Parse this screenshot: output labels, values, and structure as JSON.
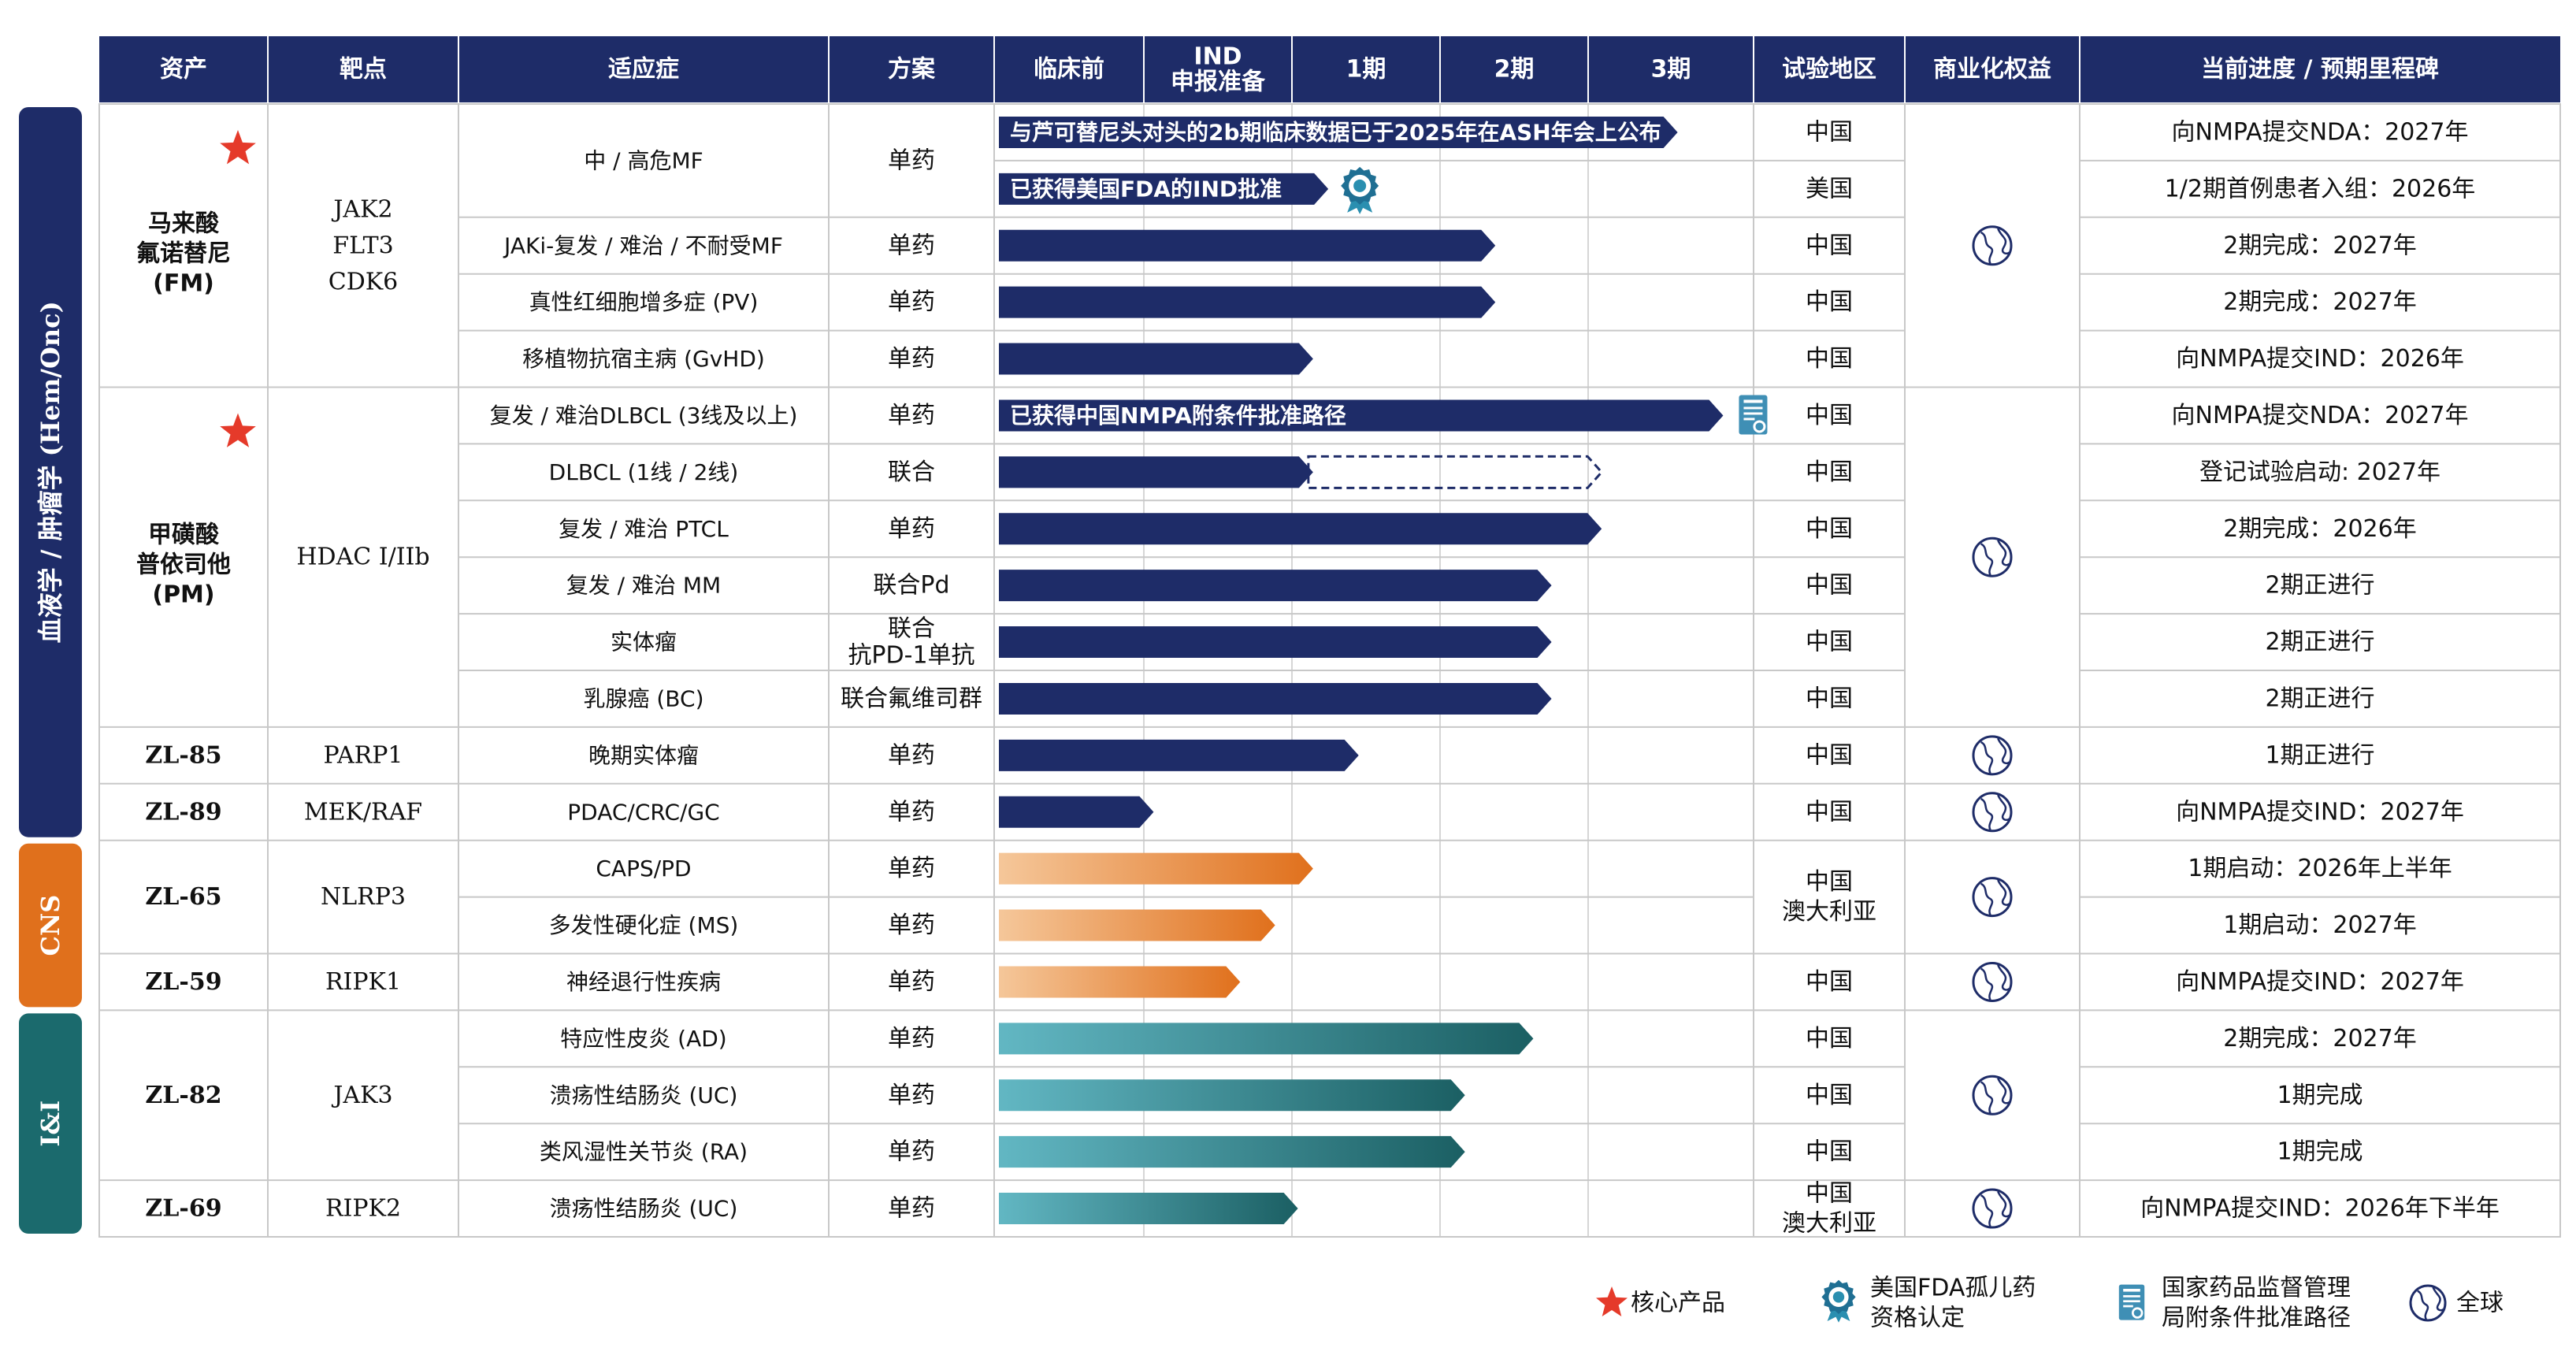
{
  "header": [
    "资产",
    "靶点",
    "适应症",
    "方案",
    "临床前",
    "IND\n申报准备",
    "1期",
    "2期",
    "3期",
    "试验地区",
    "商业化权益",
    "当前进度 / 预期里程碑"
  ],
  "categories": [
    {
      "label": "血液学 / 肿瘤学 (Hem/Onc)",
      "color": "#1e2c68"
    },
    {
      "label": "CNS",
      "color": "#e0701c"
    },
    {
      "label": "I&I",
      "color": "#1b6a6d"
    }
  ],
  "groups": [
    {
      "name": "马来酸\n氟诺替尼\n(FM)",
      "target": "JAK2\nFLT3\nCDK6",
      "star": true
    },
    {
      "name": "甲磺酸\n普依司他\n(PM)",
      "target": "HDAC I/IIb",
      "star": true
    },
    {
      "name": "ZL-85",
      "target": "PARP1",
      "star": false
    },
    {
      "name": "ZL-89",
      "target": "MEK/RAF",
      "star": false
    },
    {
      "name": "ZL-65",
      "target": "NLRP3",
      "star": false
    },
    {
      "name": "ZL-59",
      "target": "RIPK1",
      "star": false
    },
    {
      "name": "ZL-82",
      "target": "JAK3",
      "star": false
    },
    {
      "name": "ZL-69",
      "target": "RIPK2",
      "star": false
    }
  ],
  "rights_icon": "globe-icon",
  "chart_data": {
    "type": "table",
    "phases": [
      "临床前",
      "IND 申报准备",
      "1期",
      "2期",
      "3期"
    ],
    "progress_unit": "phase position on a 0–5 scale (0 = start of 临床前, 5 = end of 3期)",
    "rows": [
      {
        "asset": "马来酸氟诺替尼 (FM)",
        "indication": "中 / 高危MF",
        "regimen": "单药",
        "region": "中国",
        "milestone": "向NMPA提交NDA：2027年",
        "bar_style": "navy",
        "progress": 4.5,
        "bar_text": "与芦可替尼头对头的2b期临床数据已于2025年在ASH年会上公布"
      },
      {
        "asset": "马来酸氟诺替尼 (FM)",
        "indication": "中 / 高危MF",
        "regimen": "单药",
        "region": "美国",
        "milestone": "1/2期首例患者入组：2026年",
        "bar_style": "navy",
        "progress": 2.2,
        "bar_text": "已获得美国FDA的IND批准",
        "badge": "fda-orphan-drug-icon"
      },
      {
        "asset": "马来酸氟诺替尼 (FM)",
        "indication": "JAKi-复发 / 难治 / 不耐受MF",
        "regimen": "单药",
        "region": "中国",
        "milestone": "2期完成：2027年",
        "bar_style": "navy",
        "progress": 3.3
      },
      {
        "asset": "马来酸氟诺替尼 (FM)",
        "indication": "真性红细胞增多症 (PV)",
        "regimen": "单药",
        "region": "中国",
        "milestone": "2期完成：2027年",
        "bar_style": "navy",
        "progress": 3.3
      },
      {
        "asset": "马来酸氟诺替尼 (FM)",
        "indication": "移植物抗宿主病 (GvHD)",
        "regimen": "单药",
        "region": "中国",
        "milestone": "向NMPA提交IND：2026年",
        "bar_style": "navy",
        "progress": 2.1
      },
      {
        "asset": "甲磺酸普依司他 (PM)",
        "indication": "复发 / 难治DLBCL (3线及以上)",
        "regimen": "单药",
        "region": "中国",
        "milestone": "向NMPA提交NDA：2027年",
        "bar_style": "navy",
        "progress": 4.8,
        "bar_text": "已获得中国NMPA附条件批准路径",
        "badge": "nmpa-conditional-approval-icon"
      },
      {
        "asset": "甲磺酸普依司他 (PM)",
        "indication": "DLBCL (1线 / 2线)",
        "regimen": "联合",
        "region": "中国",
        "milestone": "登记试验启动: 2027年",
        "bar_style": "navy",
        "progress": 2.1,
        "planned_to": 4.0
      },
      {
        "asset": "甲磺酸普依司他 (PM)",
        "indication": "复发 / 难治 PTCL",
        "regimen": "单药",
        "region": "中国",
        "milestone": "2期完成：2026年",
        "bar_style": "navy",
        "progress": 4.0
      },
      {
        "asset": "甲磺酸普依司他 (PM)",
        "indication": "复发 / 难治 MM",
        "regimen": "联合Pd",
        "region": "中国",
        "milestone": "2期正进行",
        "bar_style": "navy",
        "progress": 3.67
      },
      {
        "asset": "甲磺酸普依司他 (PM)",
        "indication": "实体瘤",
        "regimen": "联合\n抗PD-1单抗",
        "region": "中国",
        "milestone": "2期正进行",
        "bar_style": "navy",
        "progress": 3.67
      },
      {
        "asset": "甲磺酸普依司他 (PM)",
        "indication": "乳腺癌 (BC)",
        "regimen": "联合氟维司群",
        "region": "中国",
        "milestone": "2期正进行",
        "bar_style": "navy",
        "progress": 3.67
      },
      {
        "asset": "ZL-85",
        "indication": "晚期实体瘤",
        "regimen": "单药",
        "region": "中国",
        "milestone": "1期正进行",
        "bar_style": "navy",
        "progress": 2.4
      },
      {
        "asset": "ZL-89",
        "indication": "PDAC/CRC/GC",
        "regimen": "单药",
        "region": "中国",
        "milestone": "向NMPA提交IND：2027年",
        "bar_style": "navy",
        "progress": 1.05
      },
      {
        "asset": "ZL-65",
        "indication": "CAPS/PD",
        "regimen": "单药",
        "region": "中国\n澳大利亚",
        "milestone": "1期启动：2026年上半年",
        "bar_style": "orange",
        "progress": 2.1
      },
      {
        "asset": "ZL-65",
        "indication": "多发性硬化症 (MS)",
        "regimen": "单药",
        "region": "中国\n澳大利亚",
        "milestone": "1期启动：2027年",
        "bar_style": "orange",
        "progress": 1.85
      },
      {
        "asset": "ZL-59",
        "indication": "神经退行性疾病",
        "regimen": "单药",
        "region": "中国",
        "milestone": "向NMPA提交IND：2027年",
        "bar_style": "orange",
        "progress": 1.62
      },
      {
        "asset": "ZL-82",
        "indication": "特应性皮炎 (AD)",
        "regimen": "单药",
        "region": "中国",
        "milestone": "2期完成：2027年",
        "bar_style": "teal",
        "progress": 3.55
      },
      {
        "asset": "ZL-82",
        "indication": "溃疡性结肠炎 (UC)",
        "regimen": "单药",
        "region": "中国",
        "milestone": "1期完成",
        "bar_style": "teal",
        "progress": 3.1
      },
      {
        "asset": "ZL-82",
        "indication": "类风湿性关节炎 (RA)",
        "regimen": "单药",
        "region": "中国",
        "milestone": "1期完成",
        "bar_style": "teal",
        "progress": 3.1
      },
      {
        "asset": "ZL-69",
        "indication": "溃疡性结肠炎 (UC)",
        "regimen": "单药",
        "region": "中国\n澳大利亚",
        "milestone": "向NMPA提交IND：2026年下半年",
        "bar_style": "teal",
        "progress": 2.0
      }
    ]
  },
  "legend": {
    "core": "核心产品",
    "fda": "美国FDA孤儿药\n资格认定",
    "nmpa": "国家药品监督管理\n局附条件批准路径",
    "global": "全球"
  },
  "colors": {
    "header": "#1e2c68",
    "navy": "#1e2c68",
    "orange_from": "#f5c79a",
    "orange_to": "#e0701c",
    "teal_from": "#62b7c3",
    "teal_to": "#1b5f63",
    "star": "#e53a2a",
    "grid": "#c8c8c8",
    "icon": "#1e2c68"
  }
}
